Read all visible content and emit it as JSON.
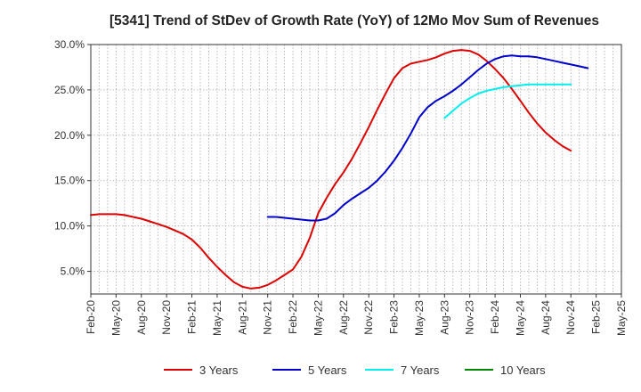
{
  "chart_data": {
    "type": "line",
    "title": "[5341]  Trend of StDev of Growth Rate (YoY) of 12Mo Mov Sum of Revenues",
    "xlabel": "",
    "ylabel": "",
    "ylim": [
      2.5,
      30
    ],
    "yticks": [
      5,
      10,
      15,
      20,
      25,
      30
    ],
    "ytick_labels": [
      "5.0%",
      "10.0%",
      "15.0%",
      "20.0%",
      "25.0%",
      "30.0%"
    ],
    "x_categories": [
      "Feb-20",
      "May-20",
      "Aug-20",
      "Nov-20",
      "Feb-21",
      "May-21",
      "Aug-21",
      "Nov-21",
      "Feb-22",
      "May-22",
      "Aug-22",
      "Nov-22",
      "Feb-23",
      "May-23",
      "Aug-23",
      "Nov-23",
      "Feb-24",
      "May-24",
      "Aug-24",
      "Nov-24",
      "Feb-25",
      "May-25"
    ],
    "grid": true,
    "legend_position": "bottom",
    "series": [
      {
        "name": "3 Years",
        "color": "#dd0000",
        "start_index": 0,
        "values": [
          11.2,
          11.3,
          11.3,
          11.3,
          11.2,
          11.0,
          10.8,
          10.5,
          10.2,
          9.9,
          9.5,
          9.1,
          8.5,
          7.6,
          6.5,
          5.5,
          4.6,
          3.8,
          3.3,
          3.1,
          3.2,
          3.5,
          4.0,
          4.6,
          5.2,
          6.6,
          8.7,
          11.4,
          13.1,
          14.6,
          15.9,
          17.4,
          19.1,
          20.9,
          22.8,
          24.6,
          26.3,
          27.4,
          27.9,
          28.1,
          28.3,
          28.6,
          29.0,
          29.3,
          29.4,
          29.3,
          28.9,
          28.2,
          27.3,
          26.3,
          25.1,
          23.8,
          22.5,
          21.3,
          20.3,
          19.5,
          18.8,
          18.3
        ]
      },
      {
        "name": "5 Years",
        "color": "#0000cc",
        "start_index": 21,
        "values": [
          11.0,
          11.0,
          10.9,
          10.8,
          10.7,
          10.6,
          10.6,
          10.8,
          11.4,
          12.3,
          13.0,
          13.6,
          14.2,
          15.0,
          16.0,
          17.2,
          18.6,
          20.2,
          22.0,
          23.1,
          23.8,
          24.3,
          24.9,
          25.6,
          26.4,
          27.2,
          27.9,
          28.4,
          28.7,
          28.8,
          28.7,
          28.7,
          28.6,
          28.4,
          28.2,
          28.0,
          27.8,
          27.6,
          27.4
        ]
      },
      {
        "name": "7 Years",
        "color": "#00eeee",
        "start_index": 42,
        "values": [
          21.9,
          22.7,
          23.5,
          24.1,
          24.6,
          24.9,
          25.1,
          25.3,
          25.4,
          25.5,
          25.6,
          25.6,
          25.6,
          25.6,
          25.6,
          25.6
        ]
      },
      {
        "name": "10 Years",
        "color": "#008800",
        "start_index": 0,
        "values": []
      }
    ]
  }
}
